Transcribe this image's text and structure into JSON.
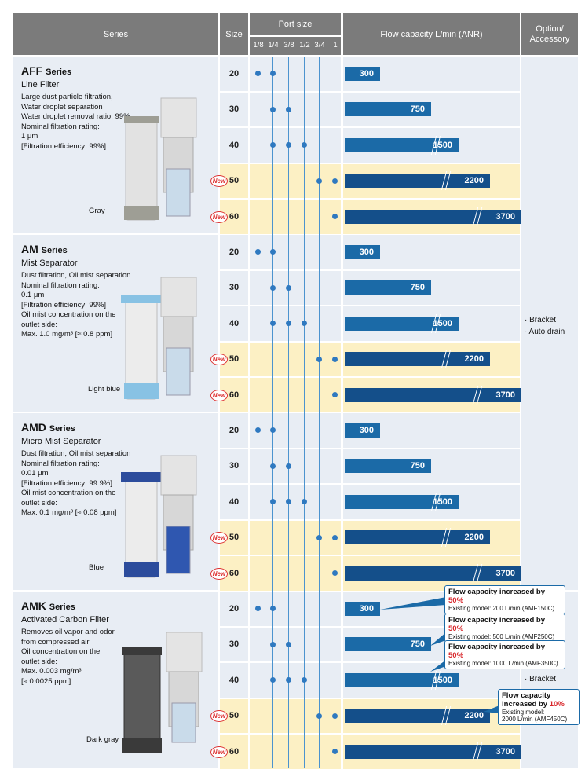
{
  "header": {
    "series": "Series",
    "size": "Size",
    "port_size": "Port size",
    "ports": [
      "1/8",
      "1/4",
      "3/8",
      "1/2",
      "3/4",
      "1"
    ],
    "flow": "Flow capacity L/min (ANR)",
    "option": "Option/\nAccessory"
  },
  "new_badge": "New",
  "series": [
    {
      "name": "AFF",
      "suffix": "Series",
      "subtitle": "Line Filter",
      "desc": [
        "Large dust particle filtration,",
        "Water droplet separation",
        "Water droplet removal ratio: 99%",
        "Nominal filtration rating:",
        "1 μm",
        " [Filtration efficiency: 99%]"
      ],
      "color_label": "Gray"
    },
    {
      "name": "AM",
      "suffix": "Series",
      "subtitle": "Mist Separator",
      "desc": [
        "Dust filtration, Oil mist separation",
        "Nominal filtration rating:",
        "0.1 μm",
        "[Filtration efficiency: 99%]",
        "Oil mist concentration on the",
        "outlet side:",
        " Max. 1.0 mg/m³ [≈ 0.8 ppm]"
      ],
      "color_label": "Light blue"
    },
    {
      "name": "AMD",
      "suffix": "Series",
      "subtitle": "Micro Mist Separator",
      "desc": [
        "Dust filtration, Oil mist separation",
        "Nominal filtration rating:",
        "0.01 μm",
        "[Filtration efficiency: 99.9%]",
        "Oil mist concentration on the",
        "outlet side:",
        " Max. 0.1 mg/m³ [≈ 0.08 ppm]"
      ],
      "color_label": "Blue"
    },
    {
      "name": "AMK",
      "suffix": "Series",
      "subtitle": "Activated Carbon Filter",
      "desc": [
        "Removes oil vapor and odor",
        "from compressed air",
        "Oil concentration on the",
        "outlet side:",
        "Max.  0.003 mg/m³",
        " [≈ 0.0025 ppm]"
      ],
      "color_label": "Dark gray"
    }
  ],
  "rows": [
    {
      "size": "20",
      "ports": [
        0,
        1
      ],
      "flow": "300",
      "new": false
    },
    {
      "size": "30",
      "ports": [
        1,
        2
      ],
      "flow": "750",
      "new": false
    },
    {
      "size": "40",
      "ports": [
        1,
        2,
        3
      ],
      "flow": "1500",
      "new": false
    },
    {
      "size": "50",
      "ports": [
        4,
        5
      ],
      "flow": "2200",
      "new": true
    },
    {
      "size": "60",
      "ports": [
        5
      ],
      "flow": "3700",
      "new": true
    }
  ],
  "options": {
    "main": [
      "· Bracket",
      "· Auto drain"
    ],
    "amk": [
      "· Bracket"
    ]
  },
  "callouts": [
    {
      "head": "Flow capacity increased by ",
      "pct": "50",
      "unit": "%",
      "sub": "Existing model: 200 L/min (AMF150C)"
    },
    {
      "head": "Flow capacity increased by ",
      "pct": "50",
      "unit": "%",
      "sub": "Existing model: 500 L/min (AMF250C)"
    },
    {
      "head": "Flow capacity increased by ",
      "pct": "50",
      "unit": "%",
      "sub": "Existing model: 1000 L/min (AMF350C)"
    },
    {
      "head1": "Flow capacity",
      "head2": "increased by ",
      "pct": "10",
      "unit": "%",
      "sub1": "Existing model:",
      "sub2": "2000 L/min (AMF450C)"
    }
  ]
}
